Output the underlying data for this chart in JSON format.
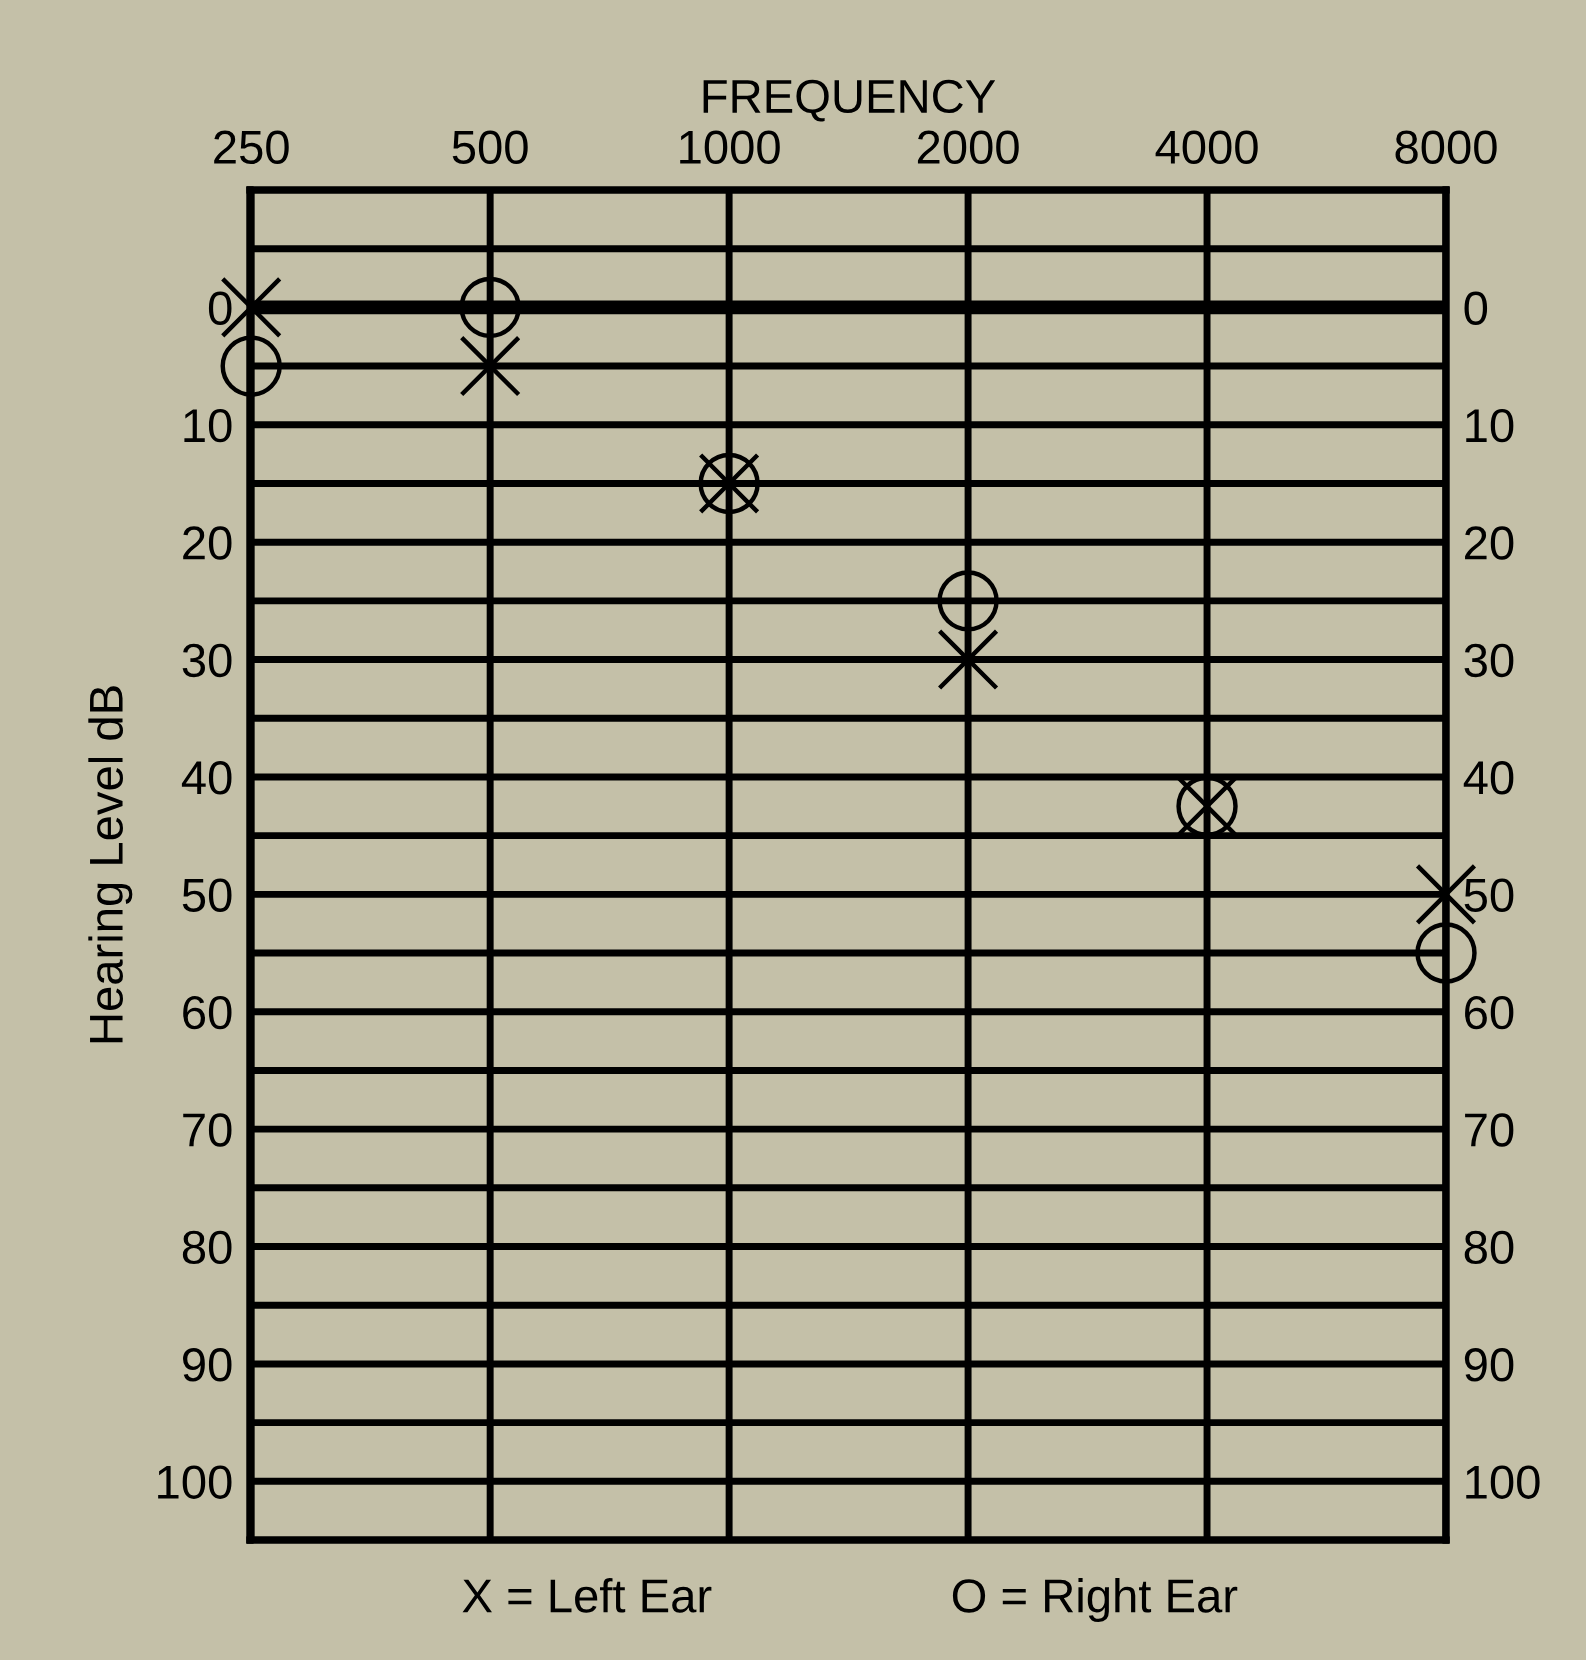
{
  "chart_data": {
    "type": "scatter",
    "xlabel": "FREQUENCY",
    "ylabel": "Hearing Level dB",
    "categories": [
      "250",
      "500",
      "1000",
      "2000",
      "4000",
      "8000"
    ],
    "series": [
      {
        "color": "#000000",
        "marker": "cross",
        "values": [
          0,
          5,
          15,
          30,
          42.5,
          50
        ]
      },
      {
        "color": "#000000",
        "marker": "circle",
        "values": [
          5,
          0,
          15,
          25,
          42.5,
          55
        ]
      }
    ],
    "ylim": [
      105,
      -10
    ],
    "yticks": [
      {
        "value": -5,
        "label": null
      },
      0,
      {
        "value": 5,
        "label": null
      },
      10,
      {
        "value": 15,
        "label": null
      },
      20,
      {
        "value": 25,
        "label": null
      },
      30,
      {
        "value": 35,
        "label": null
      },
      40,
      {
        "value": 45,
        "label": null
      },
      50,
      {
        "value": 55,
        "label": null
      },
      60,
      {
        "value": 65,
        "label": null
      },
      70,
      {
        "value": 75,
        "label": null
      },
      80,
      {
        "value": 85,
        "label": null
      },
      90,
      {
        "value": 95,
        "label": null
      },
      100
    ],
    "y2lim": [
      105,
      -10
    ],
    "y2ticks": [
      {
        "value": -5,
        "label": null
      },
      0,
      {
        "value": 5,
        "label": null
      },
      10,
      {
        "value": 15,
        "label": null
      },
      20,
      {
        "value": 25,
        "label": null
      },
      30,
      {
        "value": 35,
        "label": null
      },
      40,
      {
        "value": 45,
        "label": null
      },
      50,
      {
        "value": 55,
        "label": null
      },
      60,
      {
        "value": 65,
        "label": null
      },
      70,
      {
        "value": 75,
        "label": null
      },
      80,
      {
        "value": 85,
        "label": null
      },
      90,
      {
        "value": 95,
        "label": null
      },
      100
    ],
    "ref_lines": [
      {
        "axis": "y",
        "value": 0,
        "color": "#000000",
        "line_style": "solid"
      }
    ],
    "grid": true,
    "annotations": [
      "X = Left Ear",
      "O = Right Ear"
    ]
  }
}
